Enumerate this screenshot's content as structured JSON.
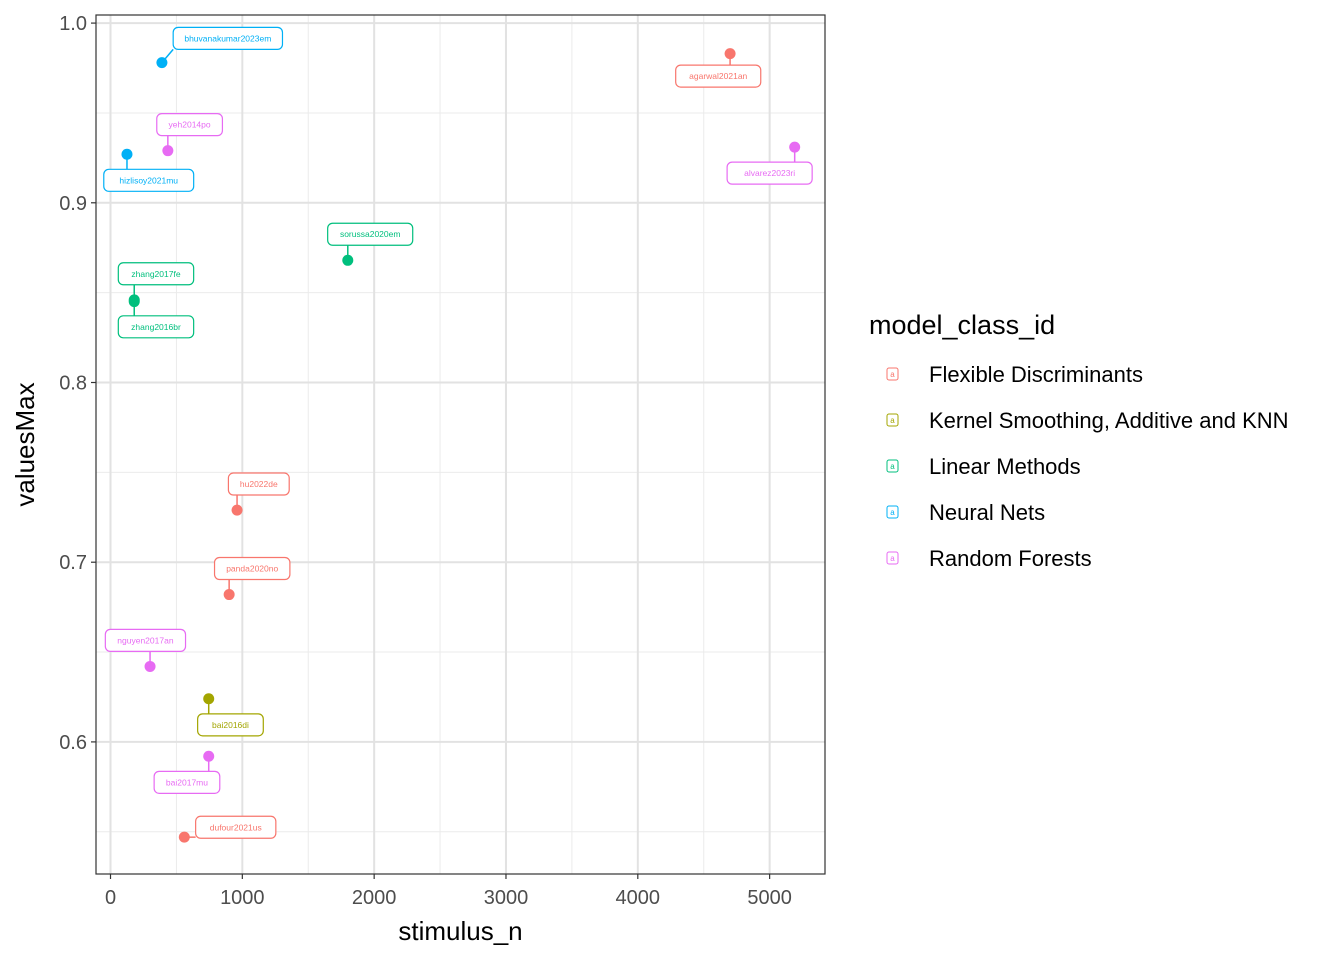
{
  "chart_data": {
    "type": "scatter",
    "xlabel": "stimulus_n",
    "ylabel": "valuesMax",
    "xlim": [
      -110,
      5420
    ],
    "ylim": [
      0.5265,
      1.0045
    ],
    "x_ticks": [
      0,
      1000,
      2000,
      3000,
      4000,
      5000
    ],
    "x_tick_labels": [
      "0",
      "1000",
      "2000",
      "3000",
      "4000",
      "5000"
    ],
    "y_ticks": [
      0.6,
      0.7,
      0.8,
      0.9,
      1.0
    ],
    "y_tick_labels": [
      "0.6",
      "0.7",
      "0.8",
      "0.9",
      "1.0"
    ],
    "grid": true,
    "legend": {
      "title": "model_class_id",
      "position": "right",
      "key_glyph": "a",
      "entries": [
        {
          "name": "Flexible Discriminants",
          "color": "#F8766D"
        },
        {
          "name": "Kernel Smoothing, Additive and KNN",
          "color": "#A3A500"
        },
        {
          "name": "Linear Methods",
          "color": "#00BF7D"
        },
        {
          "name": "Neural Nets",
          "color": "#00B0F6"
        },
        {
          "name": "Random Forests",
          "color": "#E76BF3"
        }
      ]
    },
    "points": [
      {
        "label": "agarwal2021an",
        "x": 4700,
        "y": 0.983,
        "class": "Flexible Discriminants",
        "label_x": 4610,
        "label_y": 0.9705
      },
      {
        "label": "hu2022de",
        "x": 960,
        "y": 0.729,
        "class": "Flexible Discriminants",
        "label_x": 1125,
        "label_y": 0.7435
      },
      {
        "label": "panda2020no",
        "x": 900,
        "y": 0.682,
        "class": "Flexible Discriminants",
        "label_x": 1075,
        "label_y": 0.6965
      },
      {
        "label": "dufour2021us",
        "x": 560,
        "y": 0.547,
        "class": "Flexible Discriminants",
        "label_x": 950,
        "label_y": 0.5525
      },
      {
        "label": "bai2016di",
        "x": 745,
        "y": 0.624,
        "class": "Kernel Smoothing, Additive and KNN",
        "label_x": 910,
        "label_y": 0.6095
      },
      {
        "label": "sorussa2020em",
        "x": 1800,
        "y": 0.868,
        "class": "Linear Methods",
        "label_x": 1970,
        "label_y": 0.8825
      },
      {
        "label": "zhang2017fe",
        "x": 180,
        "y": 0.846,
        "class": "Linear Methods",
        "label_x": 345,
        "label_y": 0.8605
      },
      {
        "label": "zhang2016br",
        "x": 180,
        "y": 0.845,
        "class": "Linear Methods",
        "label_x": 345,
        "label_y": 0.831
      },
      {
        "label": "bhuvanakumar2023em",
        "x": 390,
        "y": 0.978,
        "class": "Neural Nets",
        "label_x": 890,
        "label_y": 0.9915
      },
      {
        "label": "hizlisoy2021mu",
        "x": 125,
        "y": 0.927,
        "class": "Neural Nets",
        "label_x": 290,
        "label_y": 0.9125
      },
      {
        "label": "yeh2014po",
        "x": 435,
        "y": 0.929,
        "class": "Random Forests",
        "label_x": 600,
        "label_y": 0.9435
      },
      {
        "label": "alvarez2023ri",
        "x": 5190,
        "y": 0.931,
        "class": "Random Forests",
        "label_x": 5000,
        "label_y": 0.9165
      },
      {
        "label": "nguyen2017an",
        "x": 300,
        "y": 0.642,
        "class": "Random Forests",
        "label_x": 265,
        "label_y": 0.6565
      },
      {
        "label": "bai2017mu",
        "x": 745,
        "y": 0.592,
        "class": "Random Forests",
        "label_x": 580,
        "label_y": 0.5775
      }
    ]
  }
}
